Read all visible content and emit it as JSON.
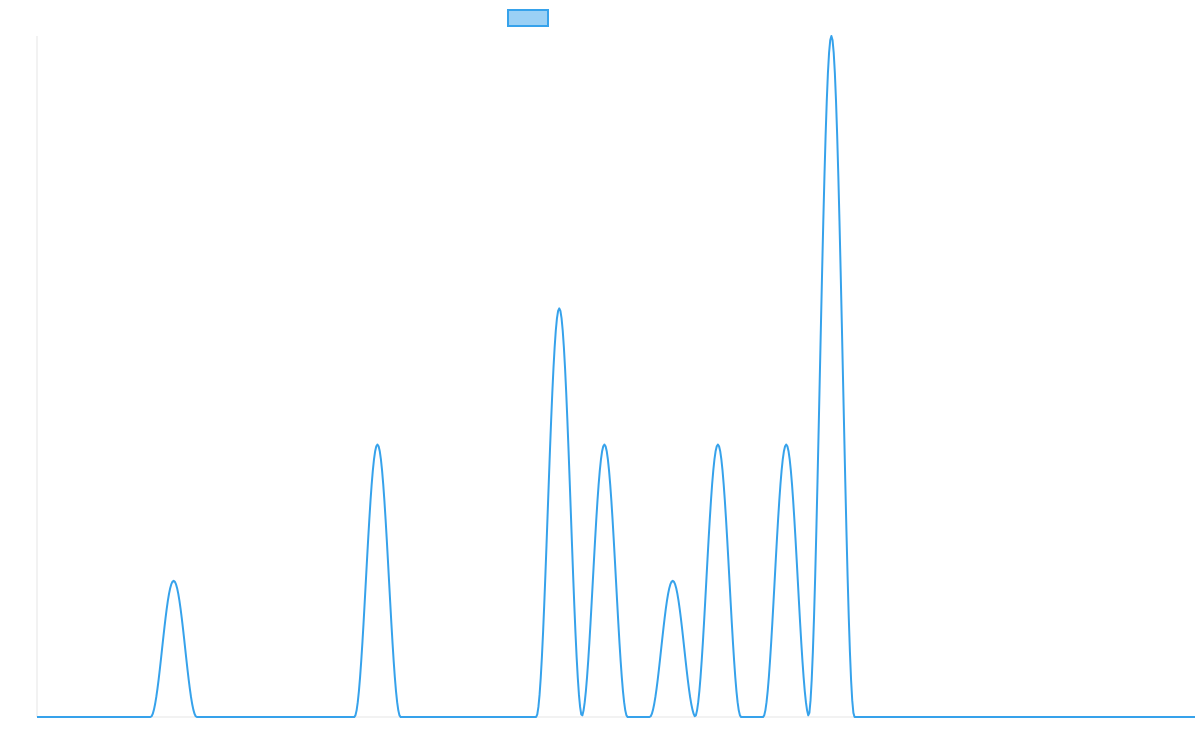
{
  "chart_data": {
    "type": "line",
    "title": "",
    "xlabel": "",
    "ylabel": "",
    "legend": {
      "position": "top-center",
      "label": ""
    },
    "grid": false,
    "colors": {
      "line": "#36a2eb",
      "fill": "#9ad0f5",
      "axis": "#e6e6e6"
    },
    "xlim": [
      0,
      1000
    ],
    "ylim": [
      0,
      5
    ],
    "series": [
      {
        "name": "",
        "peaks": [
          {
            "x": 118,
            "y": 1,
            "half_width": 20
          },
          {
            "x": 294,
            "y": 2,
            "half_width": 20
          },
          {
            "x": 451,
            "y": 3,
            "half_width": 20
          },
          {
            "x": 490,
            "y": 2,
            "half_width": 20
          },
          {
            "x": 549,
            "y": 1,
            "half_width": 20
          },
          {
            "x": 588,
            "y": 2,
            "half_width": 20
          },
          {
            "x": 647,
            "y": 2,
            "half_width": 20
          },
          {
            "x": 686,
            "y": 5,
            "half_width": 20
          }
        ]
      }
    ]
  }
}
